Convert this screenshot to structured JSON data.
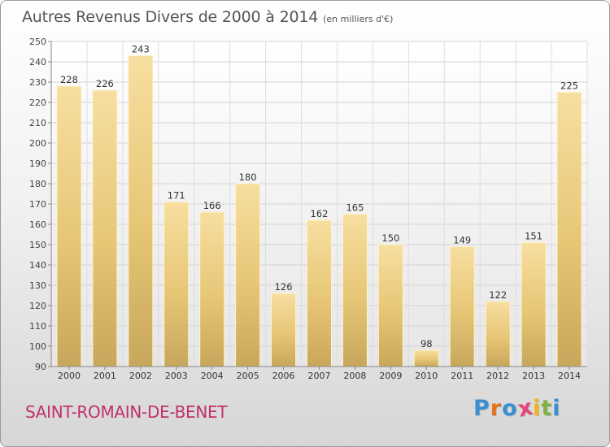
{
  "header": {
    "title": "Autres Revenus Divers de 2000 à 2014",
    "subtitle": "(en milliers d'€)"
  },
  "footer": {
    "town": "SAINT-ROMAIN-DE-BENET",
    "logo": {
      "letters": [
        "P",
        "r",
        "o",
        "x",
        "i",
        "t",
        "i"
      ],
      "colors": [
        "#3a8fd1",
        "#e0731d",
        "#3a8fd1",
        "#e2457f",
        "#f0b41a",
        "#7fb241",
        "#3a8fd1"
      ]
    }
  },
  "chart_data": {
    "type": "bar",
    "categories": [
      "2000",
      "2001",
      "2002",
      "2003",
      "2004",
      "2005",
      "2006",
      "2007",
      "2008",
      "2009",
      "2010",
      "2011",
      "2012",
      "2013",
      "2014"
    ],
    "values": [
      228,
      226,
      243,
      171,
      166,
      180,
      126,
      162,
      165,
      150,
      98,
      149,
      122,
      151,
      225
    ],
    "data_labels": [
      "228",
      "226",
      "243",
      "171",
      "166",
      "180",
      "126",
      "162",
      "165",
      "150",
      "98",
      "149",
      "122",
      "151",
      "225"
    ],
    "title": "Autres Revenus Divers de 2000 à 2014",
    "ylim": [
      90,
      250
    ],
    "yticks": [
      90,
      100,
      110,
      120,
      130,
      140,
      150,
      160,
      170,
      180,
      190,
      200,
      210,
      220,
      230,
      240,
      250
    ],
    "ytick_labels": [
      "90",
      "100",
      "110",
      "120",
      "130",
      "140",
      "150",
      "160",
      "170",
      "180",
      "190",
      "200",
      "210",
      "220",
      "230",
      "240",
      "250"
    ],
    "grid": true,
    "bar_color": "#e8c56e"
  }
}
